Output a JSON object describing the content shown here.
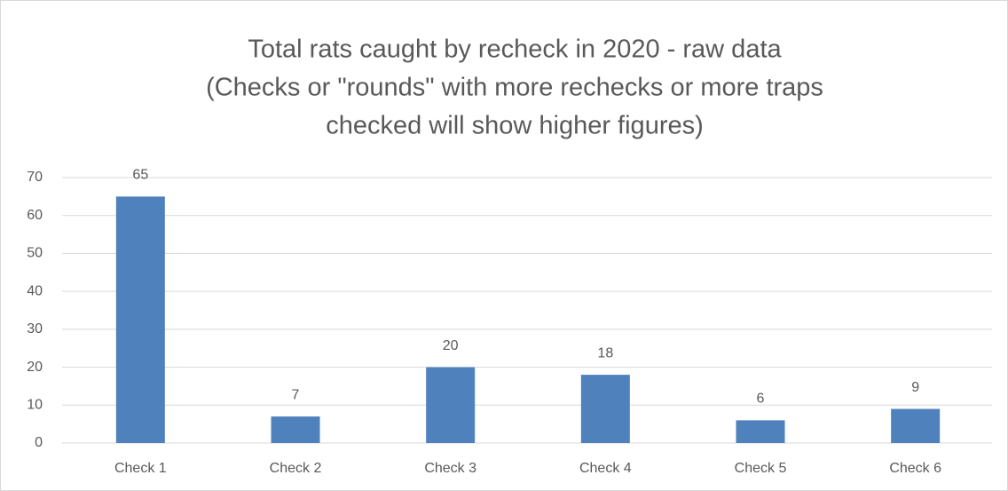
{
  "chart_data": {
    "type": "bar",
    "title": [
      "Total rats caught by recheck in 2020 - raw data",
      "(Checks or \"rounds\" with more rechecks or more traps",
      "checked will show higher figures)"
    ],
    "categories": [
      "Check 1",
      "Check 2",
      "Check 3",
      "Check 4",
      "Check 5",
      "Check 6"
    ],
    "values": [
      65,
      7,
      20,
      18,
      6,
      9
    ],
    "color": "#4f81bd",
    "ylim": [
      0,
      70
    ],
    "yticks": [
      0,
      10,
      20,
      30,
      40,
      50,
      60,
      70
    ],
    "grid": true
  }
}
